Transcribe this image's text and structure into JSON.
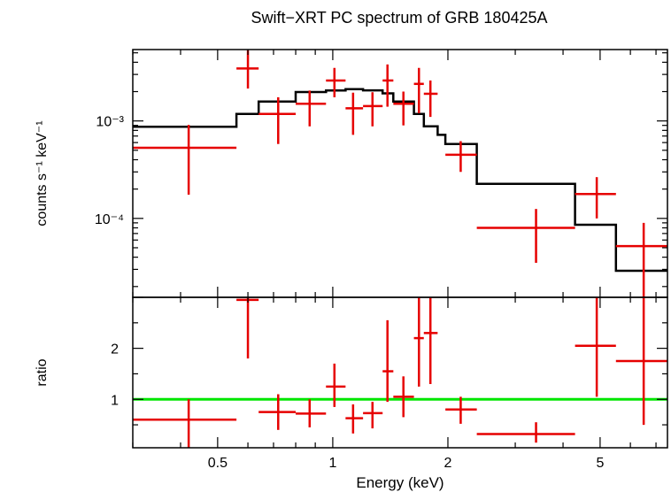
{
  "chart_data": {
    "type": "scatter",
    "title": "Swift−XRT PC spectrum of GRB 180425A",
    "xlabel": "Energy (keV)",
    "x_scale": "log",
    "xlim": [
      0.3,
      7.5
    ],
    "x_ticks": [
      {
        "value": 0.5,
        "label": "0.5"
      },
      {
        "value": 1,
        "label": "1"
      },
      {
        "value": 2,
        "label": "2"
      },
      {
        "value": 5,
        "label": "5"
      }
    ],
    "colors": {
      "data": "#e60000",
      "model": "#000000",
      "unity": "#00e600"
    },
    "panels": [
      {
        "name": "spectrum",
        "ylabel": "counts s⁻¹ keV⁻¹",
        "y_scale": "log",
        "ylim": [
          1.55e-05,
          0.0054
        ],
        "y_ticks": [
          {
            "value": 0.001,
            "label": "10⁻³"
          },
          {
            "value": 0.0001,
            "label": "10⁻⁴"
          }
        ],
        "data": [
          {
            "x": 0.42,
            "xlo": 0.3,
            "xhi": 0.56,
            "y": 0.00053,
            "ylo": 0.000175,
            "yhi": 0.00091
          },
          {
            "x": 0.6,
            "xlo": 0.56,
            "xhi": 0.64,
            "y": 0.00345,
            "ylo": 0.00215,
            "yhi": 0.0053
          },
          {
            "x": 0.72,
            "xlo": 0.64,
            "xhi": 0.8,
            "y": 0.00118,
            "ylo": 0.00058,
            "yhi": 0.00175
          },
          {
            "x": 0.87,
            "xlo": 0.8,
            "xhi": 0.96,
            "y": 0.0015,
            "ylo": 0.00088,
            "yhi": 0.00205
          },
          {
            "x": 1.01,
            "xlo": 0.96,
            "xhi": 1.08,
            "y": 0.0026,
            "ylo": 0.00175,
            "yhi": 0.0035
          },
          {
            "x": 1.13,
            "xlo": 1.08,
            "xhi": 1.2,
            "y": 0.00135,
            "ylo": 0.00072,
            "yhi": 0.00195
          },
          {
            "x": 1.27,
            "xlo": 1.2,
            "xhi": 1.35,
            "y": 0.00142,
            "ylo": 0.00088,
            "yhi": 0.00197
          },
          {
            "x": 1.39,
            "xlo": 1.35,
            "xhi": 1.44,
            "y": 0.0026,
            "ylo": 0.0014,
            "yhi": 0.0038
          },
          {
            "x": 1.53,
            "xlo": 1.44,
            "xhi": 1.63,
            "y": 0.0015,
            "ylo": 0.0009,
            "yhi": 0.002
          },
          {
            "x": 1.68,
            "xlo": 1.63,
            "xhi": 1.73,
            "y": 0.0024,
            "ylo": 0.0012,
            "yhi": 0.0035
          },
          {
            "x": 1.8,
            "xlo": 1.73,
            "xhi": 1.88,
            "y": 0.0019,
            "ylo": 0.0011,
            "yhi": 0.0026
          },
          {
            "x": 2.16,
            "xlo": 1.97,
            "xhi": 2.38,
            "y": 0.00045,
            "ylo": 0.0003,
            "yhi": 0.00062
          },
          {
            "x": 3.4,
            "xlo": 2.38,
            "xhi": 4.3,
            "y": 8e-05,
            "ylo": 3.5e-05,
            "yhi": 0.000125
          },
          {
            "x": 4.9,
            "xlo": 4.3,
            "xhi": 5.5,
            "y": 0.000178,
            "ylo": 0.0001,
            "yhi": 0.000265
          },
          {
            "x": 6.5,
            "xlo": 5.5,
            "xhi": 7.5,
            "y": 5.2e-05,
            "ylo": 1.55e-05,
            "yhi": 9e-05
          }
        ],
        "model": [
          {
            "xlo": 0.3,
            "xhi": 0.56,
            "y": 0.00087
          },
          {
            "xlo": 0.56,
            "xhi": 0.64,
            "y": 0.00118
          },
          {
            "xlo": 0.64,
            "xhi": 0.8,
            "y": 0.00158
          },
          {
            "xlo": 0.8,
            "xhi": 0.96,
            "y": 0.00198
          },
          {
            "xlo": 0.96,
            "xhi": 1.08,
            "y": 0.00205
          },
          {
            "xlo": 1.08,
            "xhi": 1.2,
            "y": 0.00212
          },
          {
            "xlo": 1.2,
            "xhi": 1.35,
            "y": 0.00206
          },
          {
            "xlo": 1.35,
            "xhi": 1.44,
            "y": 0.00192
          },
          {
            "xlo": 1.44,
            "xhi": 1.63,
            "y": 0.00158
          },
          {
            "xlo": 1.63,
            "xhi": 1.73,
            "y": 0.00118
          },
          {
            "xlo": 1.73,
            "xhi": 1.88,
            "y": 0.00088
          },
          {
            "xlo": 1.88,
            "xhi": 1.97,
            "y": 0.00072
          },
          {
            "xlo": 1.97,
            "xhi": 2.38,
            "y": 0.00058
          },
          {
            "xlo": 2.38,
            "xhi": 4.3,
            "y": 0.000226
          },
          {
            "xlo": 4.3,
            "xhi": 5.5,
            "y": 8.6e-05
          },
          {
            "xlo": 5.5,
            "xhi": 7.5,
            "y": 2.9e-05
          }
        ]
      },
      {
        "name": "ratio",
        "ylabel": "ratio",
        "y_scale": "linear",
        "ylim": [
          0.05,
          3.0
        ],
        "y_ticks": [
          {
            "value": 1,
            "label": "1"
          },
          {
            "value": 2,
            "label": "2"
          }
        ],
        "unity_line": 1,
        "data": [
          {
            "x": 0.42,
            "xlo": 0.3,
            "xhi": 0.56,
            "y": 0.6,
            "ylo": 0.05,
            "yhi": 1.0
          },
          {
            "x": 0.6,
            "xlo": 0.56,
            "xhi": 0.64,
            "y": 2.95,
            "ylo": 1.8,
            "yhi": 3.0
          },
          {
            "x": 0.72,
            "xlo": 0.64,
            "xhi": 0.8,
            "y": 0.75,
            "ylo": 0.4,
            "yhi": 1.1
          },
          {
            "x": 0.87,
            "xlo": 0.8,
            "xhi": 0.96,
            "y": 0.72,
            "ylo": 0.45,
            "yhi": 1.0
          },
          {
            "x": 1.01,
            "xlo": 0.96,
            "xhi": 1.08,
            "y": 1.25,
            "ylo": 0.85,
            "yhi": 1.7
          },
          {
            "x": 1.13,
            "xlo": 1.08,
            "xhi": 1.2,
            "y": 0.63,
            "ylo": 0.33,
            "yhi": 0.9
          },
          {
            "x": 1.27,
            "xlo": 1.2,
            "xhi": 1.35,
            "y": 0.73,
            "ylo": 0.43,
            "yhi": 0.95
          },
          {
            "x": 1.39,
            "xlo": 1.35,
            "xhi": 1.44,
            "y": 1.55,
            "ylo": 0.95,
            "yhi": 2.55
          },
          {
            "x": 1.53,
            "xlo": 1.44,
            "xhi": 1.63,
            "y": 1.05,
            "ylo": 0.65,
            "yhi": 1.45
          },
          {
            "x": 1.68,
            "xlo": 1.63,
            "xhi": 1.73,
            "y": 2.2,
            "ylo": 1.25,
            "yhi": 3.0
          },
          {
            "x": 1.8,
            "xlo": 1.73,
            "xhi": 1.88,
            "y": 2.3,
            "ylo": 1.3,
            "yhi": 3.0
          },
          {
            "x": 2.16,
            "xlo": 1.97,
            "xhi": 2.38,
            "y": 0.8,
            "ylo": 0.52,
            "yhi": 1.05
          },
          {
            "x": 3.4,
            "xlo": 2.38,
            "xhi": 4.3,
            "y": 0.32,
            "ylo": 0.15,
            "yhi": 0.55
          },
          {
            "x": 4.9,
            "xlo": 4.3,
            "xhi": 5.5,
            "y": 2.05,
            "ylo": 1.05,
            "yhi": 3.0
          },
          {
            "x": 6.5,
            "xlo": 5.5,
            "xhi": 7.5,
            "y": 1.75,
            "ylo": 0.5,
            "yhi": 3.0
          }
        ]
      }
    ]
  }
}
